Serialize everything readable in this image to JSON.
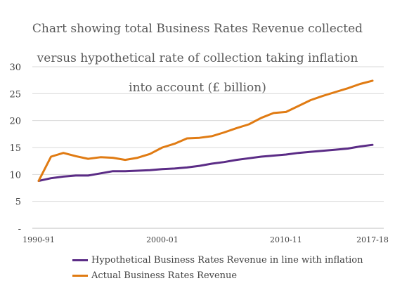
{
  "chart_data": {
    "type": "line",
    "title": "Chart showing total Business Rates Revenue collected versus hypothetical rate of collection taking inflation into account (£ billion)",
    "title_lines": [
      "Chart showing total Business Rates Revenue collected",
      "versus hypothetical rate of collection taking inflation",
      "into account (£ billion)"
    ],
    "xlabel": "",
    "ylabel": "",
    "x": [
      "1990-91",
      "1991-92",
      "1992-93",
      "1993-94",
      "1994-95",
      "1995-96",
      "1996-97",
      "1997-98",
      "1998-99",
      "1999-00",
      "2000-01",
      "2001-02",
      "2002-03",
      "2003-04",
      "2004-05",
      "2005-06",
      "2006-07",
      "2007-08",
      "2008-09",
      "2009-10",
      "2010-11",
      "2011-12",
      "2012-13",
      "2013-14",
      "2014-15",
      "2015-16",
      "2016-17",
      "2017-18"
    ],
    "x_tick_labels": [
      {
        "index": 0,
        "label": "1990-91"
      },
      {
        "index": 10,
        "label": "2000-01"
      },
      {
        "index": 20,
        "label": "2010-11"
      },
      {
        "index": 27,
        "label": "2017-18"
      }
    ],
    "y_ticks": [
      {
        "value": 0,
        "label": "-"
      },
      {
        "value": 5,
        "label": "5"
      },
      {
        "value": 10,
        "label": "10"
      },
      {
        "value": 15,
        "label": "15"
      },
      {
        "value": 20,
        "label": "20"
      },
      {
        "value": 25,
        "label": "25"
      },
      {
        "value": 30,
        "label": "30"
      }
    ],
    "ylim": [
      0,
      30
    ],
    "grid": true,
    "legend_position": "bottom",
    "series": [
      {
        "name": "Hypothetical Business Rates Revenue in line with inflation",
        "color": "#5b2c86",
        "values": [
          8.8,
          9.3,
          9.6,
          9.8,
          9.8,
          10.2,
          10.6,
          10.6,
          10.7,
          10.8,
          11.0,
          11.1,
          11.3,
          11.6,
          12.0,
          12.3,
          12.7,
          13.0,
          13.3,
          13.5,
          13.7,
          14.0,
          14.2,
          14.4,
          14.6,
          14.8,
          15.2,
          15.5
        ]
      },
      {
        "name": "Actual Business Rates Revenue",
        "color": "#e07b13",
        "values": [
          8.8,
          13.3,
          14.0,
          13.4,
          12.9,
          13.2,
          13.1,
          12.7,
          13.1,
          13.8,
          15.0,
          15.7,
          16.7,
          16.8,
          17.1,
          17.8,
          18.6,
          19.3,
          20.5,
          21.4,
          21.6,
          22.7,
          23.8,
          24.6,
          25.3,
          26.0,
          26.8,
          27.4
        ]
      }
    ]
  }
}
